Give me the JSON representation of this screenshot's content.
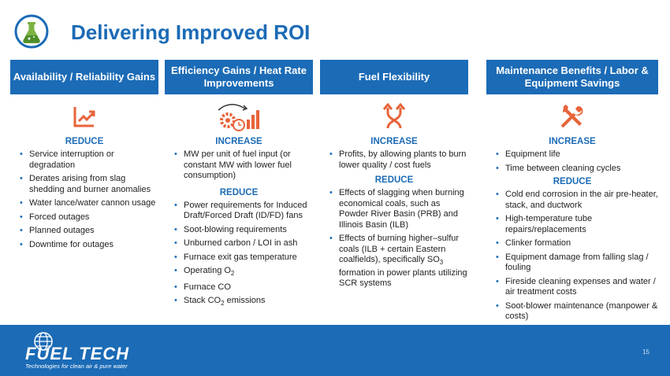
{
  "title": "Delivering Improved ROI",
  "colors": {
    "primary": "#1b6bb6",
    "accent": "#e8633a",
    "logo_green": "#7cb342"
  },
  "columns": [
    {
      "header": "Availability / Reliability Gains",
      "icon": "trend-up-chart-icon",
      "sections": [
        {
          "label": "REDUCE",
          "items": [
            "Service interruption or degradation",
            "Derates arising from slag shedding and burner anomalies",
            "Water lance/water cannon usage",
            "Forced outages",
            "Planned outages",
            "Downtime for outages"
          ]
        }
      ]
    },
    {
      "header": "Efficiency Gains / Heat Rate Improvements",
      "icon": "gear-clock-bars-icon",
      "sections": [
        {
          "label": "INCREASE",
          "items": [
            "MW per unit of fuel input (or constant MW with lower fuel consumption)"
          ]
        },
        {
          "label": "REDUCE",
          "items": [
            "Power requirements for Induced Draft/Forced Draft (ID/FD) fans",
            "Soot-blowing requirements",
            "Unburned carbon / LOI in ash",
            "Furnace exit gas temperature",
            "Operating O",
            "Furnace CO",
            "Stack CO"
          ]
        }
      ]
    },
    {
      "header": "Fuel Flexibility",
      "icon": "crossing-arrows-icon",
      "sections": [
        {
          "label": "INCREASE",
          "items": [
            "Profits, by allowing plants to burn lower quality / cost fuels"
          ]
        },
        {
          "label": "REDUCE",
          "items": [
            "Effects of slagging when burning economical coals, such as Powder River Basin (PRB) and Illinois Basin (ILB)",
            "Effects of burning higher–sulfur coals (ILB + certain Eastern coalfields), specifically SO",
            "formation in power plants utilizing SCR systems"
          ]
        }
      ]
    },
    {
      "header": "Maintenance Benefits / Labor & Equipment Savings",
      "icon": "wrench-screwdriver-icon",
      "sections": [
        {
          "label": "INCREASE",
          "items": [
            "Equipment life",
            "Time between cleaning cycles"
          ]
        },
        {
          "label": "REDUCE",
          "items": [
            "Cold end corrosion in the air pre-heater, stack, and ductwork",
            "High-temperature tube repairs/replacements",
            "Clinker formation",
            "Equipment damage from falling slag / fouling",
            "Fireside cleaning expenses and water / air treatment costs",
            "Soot-blower maintenance (manpower & costs)"
          ]
        }
      ]
    }
  ],
  "subscripts": {
    "o2": "2",
    "co2": "2",
    "so3": "3",
    "co2_tail": "emissions"
  },
  "footer": {
    "brand": "FUEL TECH",
    "tagline": "Technologies for clean air & pure water",
    "page_number": "15"
  }
}
